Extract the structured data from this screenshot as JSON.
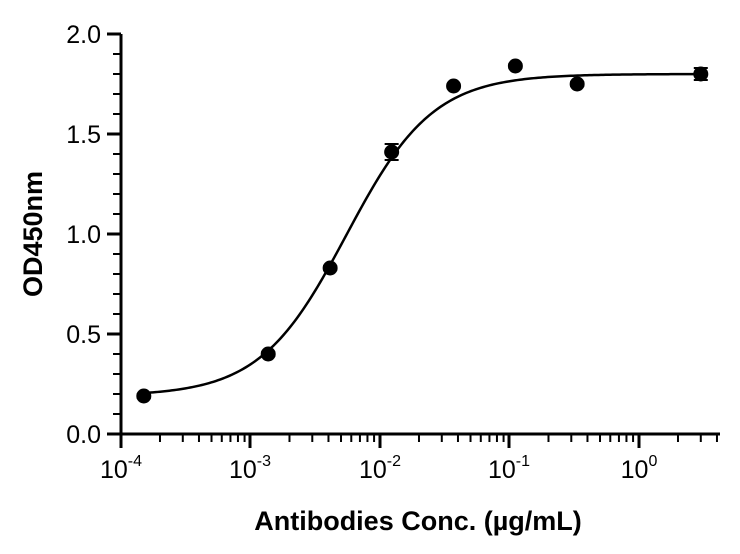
{
  "chart_data": {
    "type": "scatter",
    "title": "",
    "xlabel": "Antibodies Conc. (µg/mL)",
    "ylabel": "OD450nm",
    "x_scale": "log10",
    "xlim": [
      0.0001,
      4
    ],
    "ylim": [
      0,
      2.0
    ],
    "grid": false,
    "legend": "none",
    "x_ticks": [
      {
        "base": "10",
        "exp": "-4"
      },
      {
        "base": "10",
        "exp": "-3"
      },
      {
        "base": "10",
        "exp": "-2"
      },
      {
        "base": "10",
        "exp": "-1"
      },
      {
        "base": "10",
        "exp": "0"
      }
    ],
    "y_ticks": [
      "0.0",
      "0.5",
      "1.0",
      "1.5",
      "2.0"
    ],
    "series": [
      {
        "x": [
          0.00015,
          0.00137,
          0.00412,
          0.0123,
          0.037,
          0.111,
          0.333,
          3.0
        ],
        "y": [
          0.19,
          0.4,
          0.83,
          1.41,
          1.74,
          1.84,
          1.75,
          1.8
        ],
        "error": [
          0.01,
          0.01,
          0.01,
          0.04,
          0.01,
          0.01,
          0.01,
          0.03
        ]
      }
    ],
    "fit": {
      "type": "4PL",
      "bottom": 0.19,
      "top": 1.8,
      "ec50": 0.0055,
      "hill": 1.3
    },
    "colors": {
      "marker": "#000000",
      "line": "#000000",
      "axis": "#000000",
      "background": "#ffffff"
    }
  }
}
